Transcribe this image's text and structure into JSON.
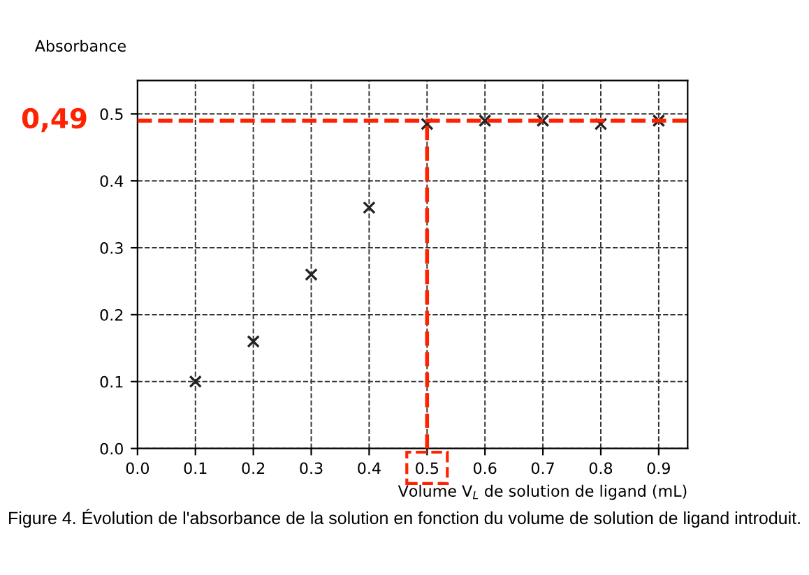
{
  "chart_data": {
    "type": "scatter",
    "xlabel": "Volume V$_{L}$ de solution de ligand (mL)",
    "ylabel": "Absorbance",
    "x": [
      0.1,
      0.2,
      0.3,
      0.4,
      0.5,
      0.6,
      0.7,
      0.8,
      0.9
    ],
    "series": [
      {
        "color": "#222222",
        "values": [
          0.1,
          0.16,
          0.26,
          0.36,
          0.485,
          0.49,
          0.49,
          0.485,
          0.49
        ]
      }
    ],
    "marker": "cross",
    "xlim": [
      0,
      0.95
    ],
    "ylim": [
      0,
      0.55
    ],
    "xticks": [
      {
        "value": 0,
        "label": "0.0"
      },
      0.1,
      0.2,
      0.3,
      0.4,
      0.5,
      0.6,
      0.7,
      0.8,
      0.9
    ],
    "yticks": [
      {
        "value": 0,
        "label": "0.0"
      },
      0.1,
      0.2,
      0.3,
      0.4,
      0.5
    ],
    "grid": true,
    "ref_lines": [
      {
        "axis": "y",
        "value": 0.49,
        "label": "0,49",
        "color": "#ff2200",
        "line_style": "dashed"
      },
      {
        "axis": "x",
        "value": 0.5,
        "color": "#ff2200",
        "line_style": "dashed"
      }
    ],
    "annotations": [
      "Figure 4. Évolution de l'absorbance de la solution en fonction du volume de solution de ligand introduit."
    ]
  }
}
